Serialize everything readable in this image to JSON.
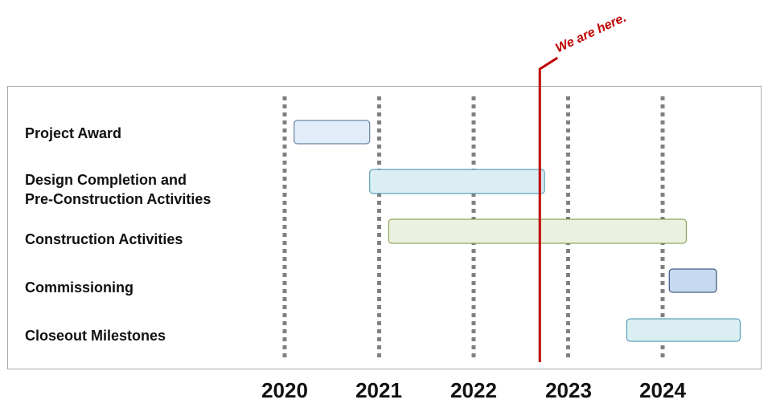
{
  "chart_data": {
    "type": "gantt",
    "x_axis": {
      "ticks": [
        "2020",
        "2021",
        "2022",
        "2023",
        "2024"
      ],
      "range": [
        2020,
        2025
      ]
    },
    "tasks": [
      {
        "name": "Project Award",
        "start": 2020.1,
        "end": 2020.9,
        "color": "#e2ecf8",
        "border": "#4a6a88"
      },
      {
        "name": "Design Completion and\nPre-Construction Activities",
        "start": 2020.9,
        "end": 2022.75,
        "color": "#daeef3",
        "border": "#3b8fa8"
      },
      {
        "name": "Construction Activities",
        "start": 2021.1,
        "end": 2024.25,
        "color": "#ebf1de",
        "border": "#76923c"
      },
      {
        "name": "Commissioning",
        "start": 2024.07,
        "end": 2024.57,
        "color": "#c6d9f1",
        "border": "#1f3864"
      },
      {
        "name": "Closeout Milestones",
        "start": 2023.62,
        "end": 2024.82,
        "color": "#daeef3",
        "border": "#3b8fa8"
      }
    ],
    "marker": {
      "label": "We are here.",
      "value": 2022.7,
      "color": "#c00000"
    },
    "gridlines": {
      "style": "dotted",
      "color": "#808080"
    }
  }
}
